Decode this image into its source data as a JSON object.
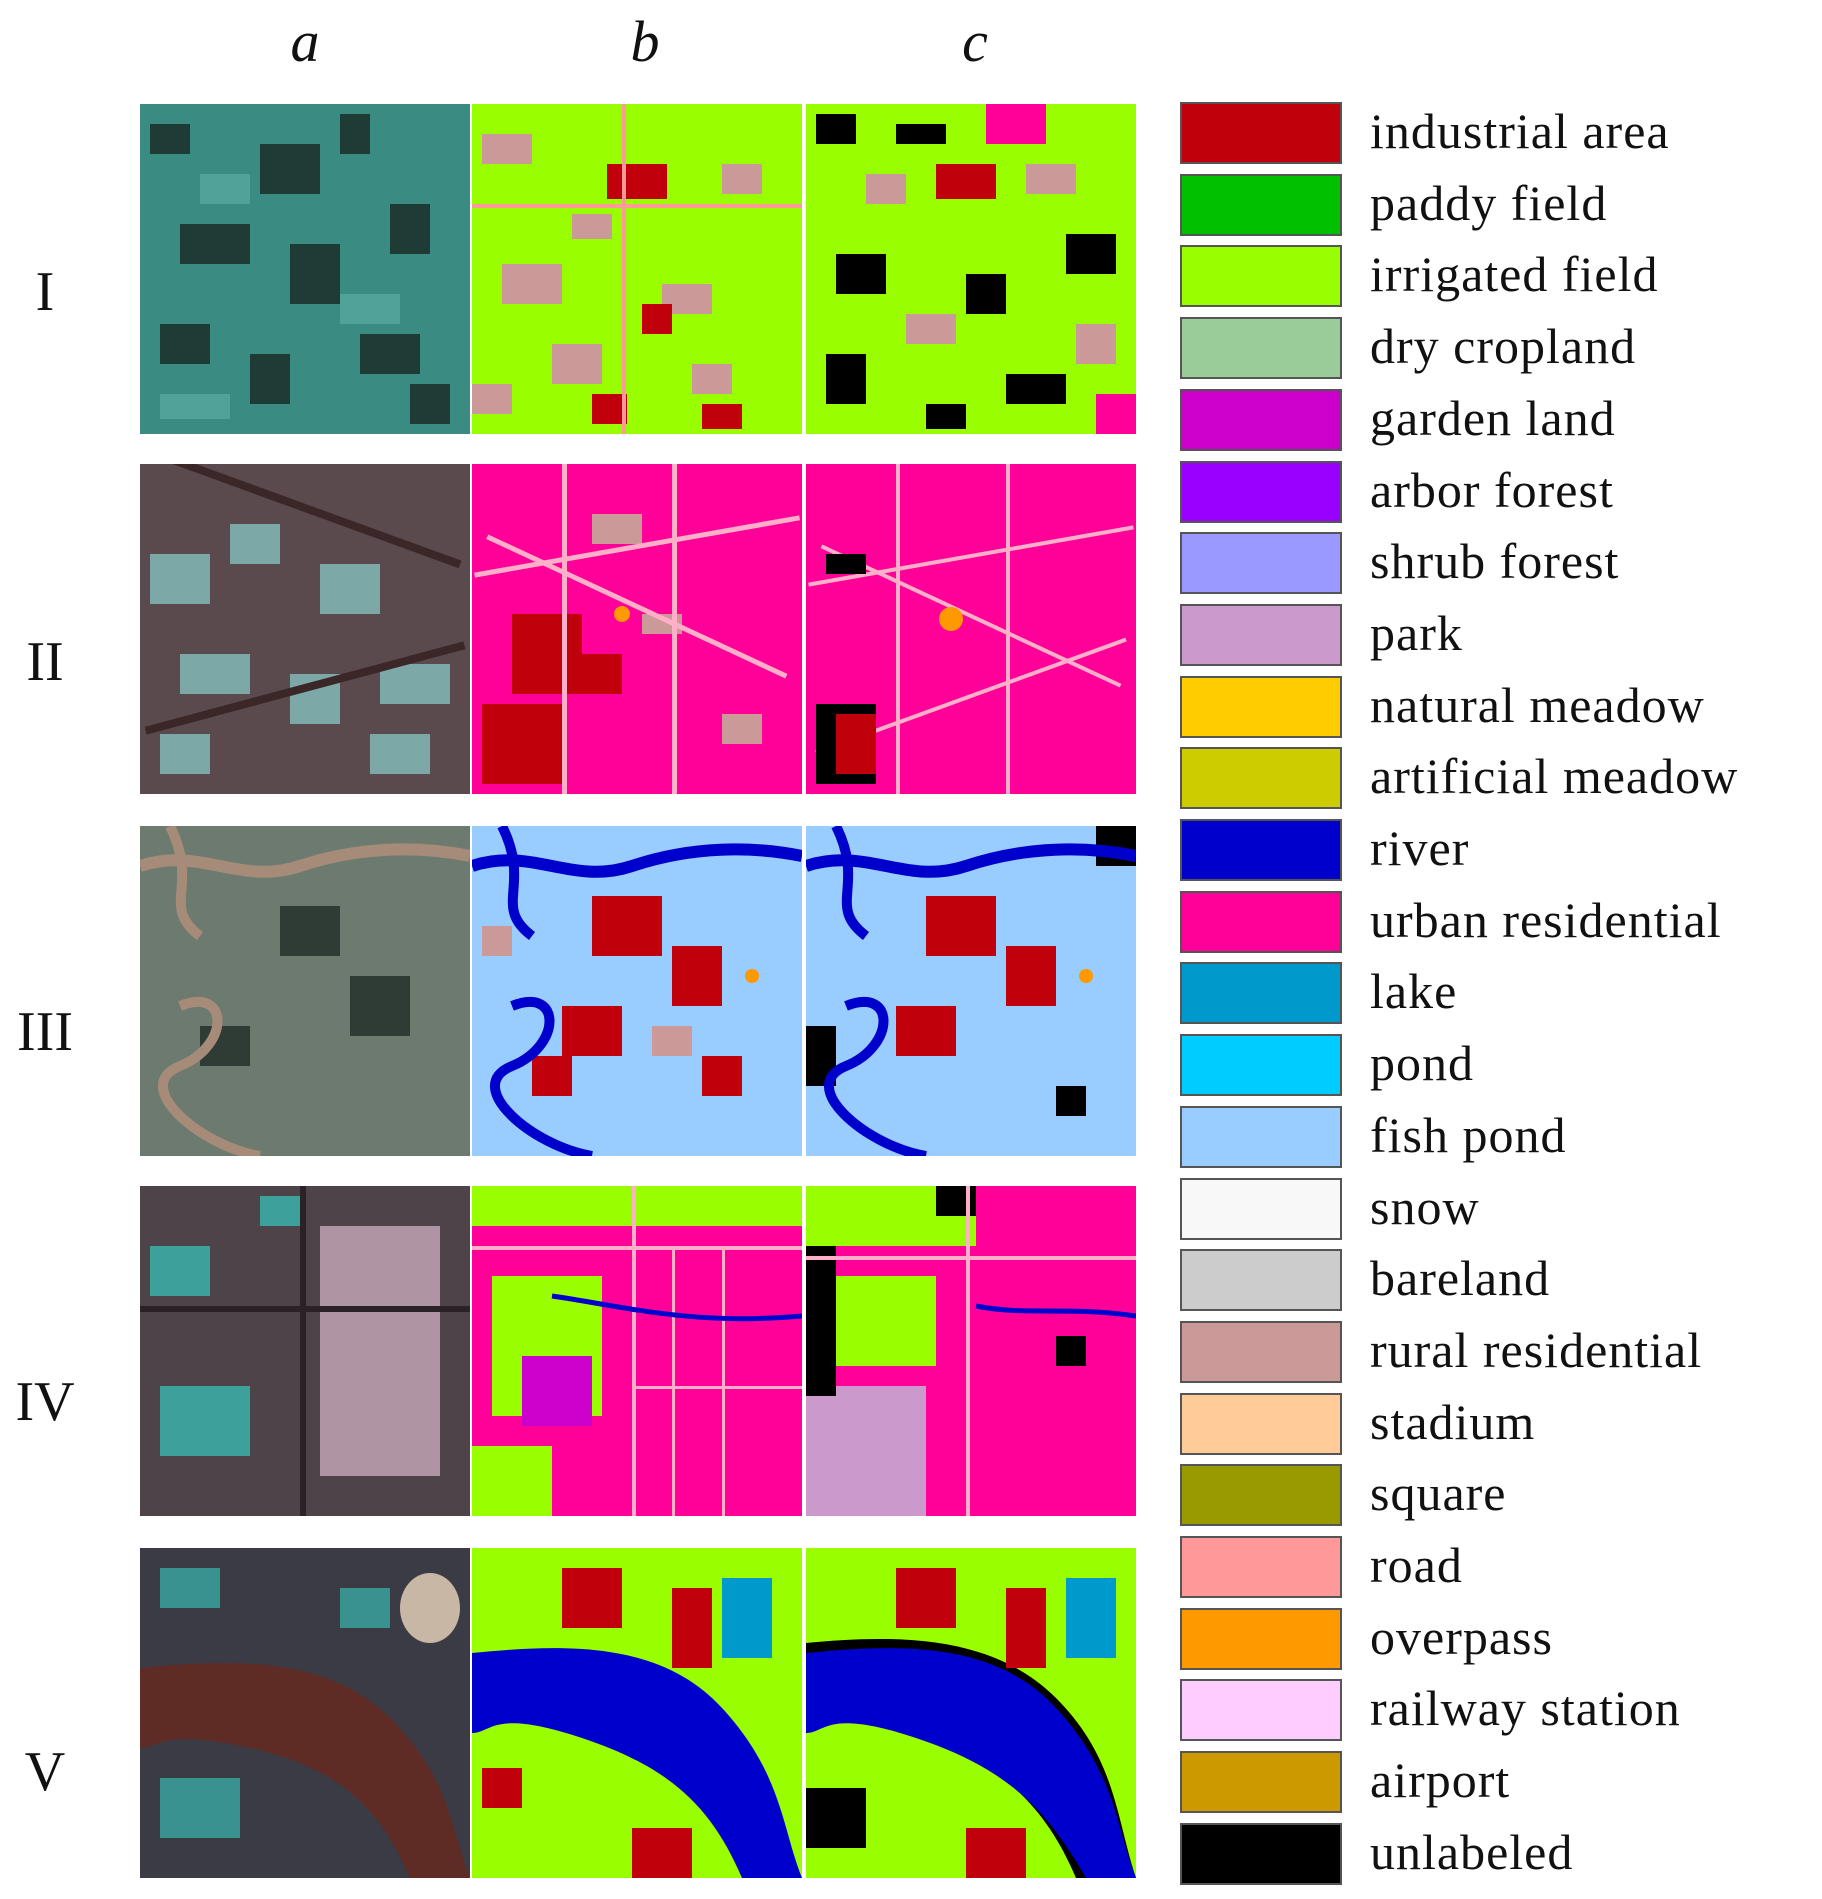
{
  "columns": [
    "a",
    "b",
    "c"
  ],
  "rows": [
    "I",
    "II",
    "III",
    "IV",
    "V"
  ],
  "legend": [
    {
      "label": "industrial area",
      "color": "#c0000b"
    },
    {
      "label": "paddy field",
      "color": "#00c000"
    },
    {
      "label": "irrigated field",
      "color": "#99ff00"
    },
    {
      "label": "dry cropland",
      "color": "#99cc99"
    },
    {
      "label": "garden land",
      "color": "#cc00cc"
    },
    {
      "label": "arbor forest",
      "color": "#9900ff"
    },
    {
      "label": "shrub forest",
      "color": "#9999ff"
    },
    {
      "label": "park",
      "color": "#cc99cc"
    },
    {
      "label": "natural meadow",
      "color": "#ffcc00"
    },
    {
      "label": "artificial meadow",
      "color": "#cccc00"
    },
    {
      "label": "river",
      "color": "#0000cc"
    },
    {
      "label": "urban residential",
      "color": "#ff0099"
    },
    {
      "label": "lake",
      "color": "#0099cc"
    },
    {
      "label": "pond",
      "color": "#00ccff"
    },
    {
      "label": "fish pond",
      "color": "#99ccff"
    },
    {
      "label": "snow",
      "color": "#f8f8f8"
    },
    {
      "label": "bareland",
      "color": "#cccccc"
    },
    {
      "label": "rural residential",
      "color": "#cc9999"
    },
    {
      "label": "stadium",
      "color": "#ffcc99"
    },
    {
      "label": "square",
      "color": "#999900"
    },
    {
      "label": "road",
      "color": "#ff9999"
    },
    {
      "label": "overpass",
      "color": "#ff9900"
    },
    {
      "label": "railway station",
      "color": "#ffccff"
    },
    {
      "label": "airport",
      "color": "#cc9900"
    },
    {
      "label": "unlabeled",
      "color": "#000000"
    }
  ]
}
